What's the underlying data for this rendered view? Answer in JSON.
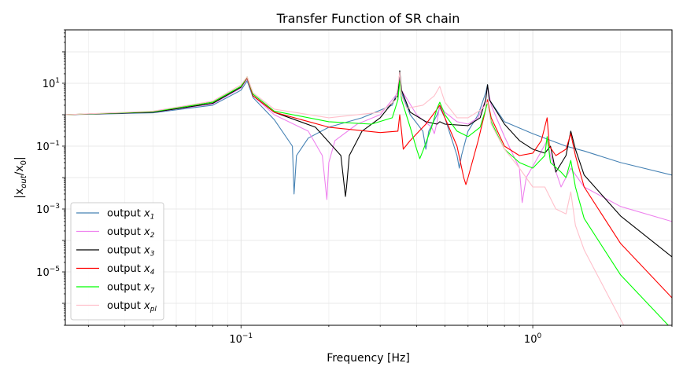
{
  "chart_data": {
    "type": "line",
    "title": "Transfer Function of SR chain",
    "xlabel": "Frequency [Hz]",
    "ylabel_parts": [
      {
        "t": "|x",
        "sub": false
      },
      {
        "t": "out",
        "sub": true,
        "italic": true
      },
      {
        "t": "/x",
        "sub": false
      },
      {
        "t": "0",
        "sub": true,
        "italic": false
      },
      {
        "t": "|",
        "sub": false
      }
    ],
    "xscale": "log",
    "yscale": "log",
    "xlim": [
      0.025,
      3.0
    ],
    "ylim": [
      2e-07,
      500
    ],
    "grid": true,
    "legend_loc": "lower left",
    "x_ticks": [
      {
        "value": 0.1,
        "base": "10",
        "exp": "−1"
      },
      {
        "value": 1,
        "base": "10",
        "exp": "0"
      }
    ],
    "y_ticks": [
      {
        "value": 10,
        "base": "10",
        "exp": "1"
      },
      {
        "value": 0.1,
        "base": "10",
        "exp": "−1"
      },
      {
        "value": 0.001,
        "base": "10",
        "exp": "−3"
      },
      {
        "value": 1e-05,
        "base": "10",
        "exp": "−5"
      }
    ],
    "series": [
      {
        "name": "output x1",
        "legend_base": "output ",
        "legend_var": "x",
        "legend_sub": "1",
        "color": "#4682b4",
        "x": [
          0.025,
          0.05,
          0.08,
          0.1,
          0.105,
          0.11,
          0.13,
          0.15,
          0.152,
          0.155,
          0.17,
          0.2,
          0.26,
          0.33,
          0.345,
          0.35,
          0.355,
          0.38,
          0.42,
          0.43,
          0.44,
          0.47,
          0.48,
          0.5,
          0.55,
          0.56,
          0.57,
          0.6,
          0.65,
          0.69,
          0.7,
          0.71,
          0.8,
          1.0,
          1.3,
          1.5,
          2.0,
          3.0
        ],
        "y": [
          1.0,
          1.15,
          2.0,
          6.0,
          12.0,
          3.5,
          0.7,
          0.1,
          0.003,
          0.05,
          0.18,
          0.4,
          0.8,
          2.0,
          6.0,
          15.0,
          5.0,
          1.0,
          0.3,
          0.08,
          0.3,
          1.0,
          1.7,
          0.8,
          0.05,
          0.02,
          0.05,
          0.3,
          1.0,
          5.0,
          9.0,
          3.0,
          0.6,
          0.25,
          0.1,
          0.07,
          0.03,
          0.012
        ]
      },
      {
        "name": "output x2",
        "legend_base": "output ",
        "legend_var": "x",
        "legend_sub": "2",
        "color": "#ee82ee",
        "x": [
          0.025,
          0.05,
          0.08,
          0.1,
          0.105,
          0.11,
          0.13,
          0.17,
          0.19,
          0.197,
          0.2,
          0.21,
          0.25,
          0.3,
          0.345,
          0.35,
          0.355,
          0.4,
          0.45,
          0.46,
          0.47,
          0.48,
          0.5,
          0.55,
          0.6,
          0.65,
          0.69,
          0.7,
          0.72,
          0.8,
          0.9,
          0.92,
          0.95,
          1.05,
          1.12,
          1.15,
          1.25,
          1.35,
          1.5,
          2.0,
          3.0
        ],
        "y": [
          1.0,
          1.2,
          2.2,
          7.0,
          14.0,
          4.0,
          1.0,
          0.3,
          0.05,
          0.002,
          0.03,
          0.15,
          0.5,
          1.0,
          5.0,
          20.0,
          6.0,
          1.0,
          0.4,
          0.25,
          0.6,
          2.0,
          1.2,
          0.6,
          0.5,
          0.8,
          3.0,
          8.0,
          2.0,
          0.2,
          0.02,
          0.0016,
          0.01,
          0.05,
          0.15,
          0.05,
          0.005,
          0.02,
          0.005,
          0.0012,
          0.0004
        ]
      },
      {
        "name": "output x3",
        "legend_base": "output ",
        "legend_var": "x",
        "legend_sub": "3",
        "color": "#000000",
        "x": [
          0.025,
          0.05,
          0.08,
          0.1,
          0.105,
          0.11,
          0.13,
          0.18,
          0.22,
          0.228,
          0.23,
          0.235,
          0.26,
          0.3,
          0.345,
          0.35,
          0.355,
          0.38,
          0.43,
          0.47,
          0.48,
          0.5,
          0.6,
          0.66,
          0.69,
          0.7,
          0.71,
          0.8,
          0.9,
          1.0,
          1.1,
          1.15,
          1.2,
          1.3,
          1.35,
          1.4,
          1.5,
          2.0,
          3.0
        ],
        "y": [
          1.0,
          1.2,
          2.3,
          7.5,
          15.0,
          4.0,
          1.2,
          0.4,
          0.05,
          0.0025,
          0.005,
          0.05,
          0.3,
          0.8,
          4.0,
          25.0,
          6.0,
          1.2,
          0.6,
          0.5,
          0.6,
          0.5,
          0.45,
          0.8,
          3.0,
          9.0,
          3.0,
          0.5,
          0.15,
          0.08,
          0.06,
          0.1,
          0.015,
          0.05,
          0.3,
          0.08,
          0.012,
          0.0006,
          3e-05
        ]
      },
      {
        "name": "output x4",
        "legend_base": "output ",
        "legend_var": "x",
        "legend_sub": "4",
        "color": "#ff0000",
        "x": [
          0.025,
          0.05,
          0.08,
          0.1,
          0.105,
          0.11,
          0.13,
          0.2,
          0.3,
          0.345,
          0.35,
          0.355,
          0.36,
          0.38,
          0.43,
          0.47,
          0.48,
          0.5,
          0.55,
          0.58,
          0.59,
          0.6,
          0.65,
          0.69,
          0.7,
          0.72,
          0.8,
          0.9,
          1.0,
          1.07,
          1.12,
          1.14,
          1.2,
          1.3,
          1.35,
          1.4,
          1.5,
          2.0,
          3.0
        ],
        "y": [
          1.0,
          1.25,
          2.5,
          8.0,
          15.0,
          4.0,
          1.2,
          0.4,
          0.27,
          0.3,
          1.0,
          0.3,
          0.08,
          0.15,
          0.5,
          1.5,
          2.0,
          0.8,
          0.1,
          0.01,
          0.006,
          0.01,
          0.15,
          1.5,
          3.0,
          0.8,
          0.1,
          0.05,
          0.06,
          0.15,
          0.8,
          0.1,
          0.05,
          0.08,
          0.25,
          0.05,
          0.005,
          8e-05,
          1.5e-06
        ]
      },
      {
        "name": "output x7",
        "legend_base": "output ",
        "legend_var": "x",
        "legend_sub": "7",
        "color": "#00ff00",
        "x": [
          0.025,
          0.05,
          0.08,
          0.1,
          0.105,
          0.11,
          0.13,
          0.2,
          0.28,
          0.33,
          0.345,
          0.35,
          0.355,
          0.38,
          0.4,
          0.41,
          0.42,
          0.45,
          0.47,
          0.48,
          0.5,
          0.55,
          0.6,
          0.66,
          0.69,
          0.7,
          0.72,
          0.8,
          0.9,
          1.0,
          1.1,
          1.12,
          1.15,
          1.25,
          1.3,
          1.35,
          1.4,
          1.5,
          2.0,
          3.0
        ],
        "y": [
          1.0,
          1.25,
          2.5,
          8.0,
          16.0,
          4.5,
          1.3,
          0.6,
          0.5,
          0.8,
          3.0,
          12.0,
          3.0,
          0.4,
          0.08,
          0.04,
          0.07,
          0.4,
          1.6,
          2.5,
          1.0,
          0.3,
          0.2,
          0.4,
          1.5,
          2.5,
          0.6,
          0.08,
          0.03,
          0.02,
          0.05,
          0.2,
          0.03,
          0.015,
          0.01,
          0.035,
          0.005,
          0.0005,
          8e-06,
          1.5e-07
        ]
      },
      {
        "name": "output xpl",
        "legend_base": "output ",
        "legend_var": "x",
        "legend_sub": "pl",
        "color": "#ffc0cb",
        "x": [
          0.025,
          0.05,
          0.08,
          0.1,
          0.105,
          0.11,
          0.13,
          0.2,
          0.3,
          0.34,
          0.35,
          0.355,
          0.37,
          0.42,
          0.46,
          0.48,
          0.5,
          0.55,
          0.6,
          0.67,
          0.7,
          0.72,
          0.8,
          0.9,
          1.0,
          1.1,
          1.2,
          1.3,
          1.35,
          1.4,
          1.5,
          1.8,
          2.05
        ],
        "y": [
          1.0,
          1.3,
          2.7,
          9.0,
          16.0,
          5.0,
          1.5,
          0.8,
          1.2,
          3.0,
          22.0,
          4.0,
          1.6,
          2.0,
          4.0,
          8.0,
          2.5,
          0.8,
          0.8,
          1.5,
          2.5,
          0.5,
          0.08,
          0.02,
          0.005,
          0.005,
          0.001,
          0.0007,
          0.0035,
          0.0003,
          5e-05,
          2e-06,
          2e-07
        ]
      }
    ]
  }
}
